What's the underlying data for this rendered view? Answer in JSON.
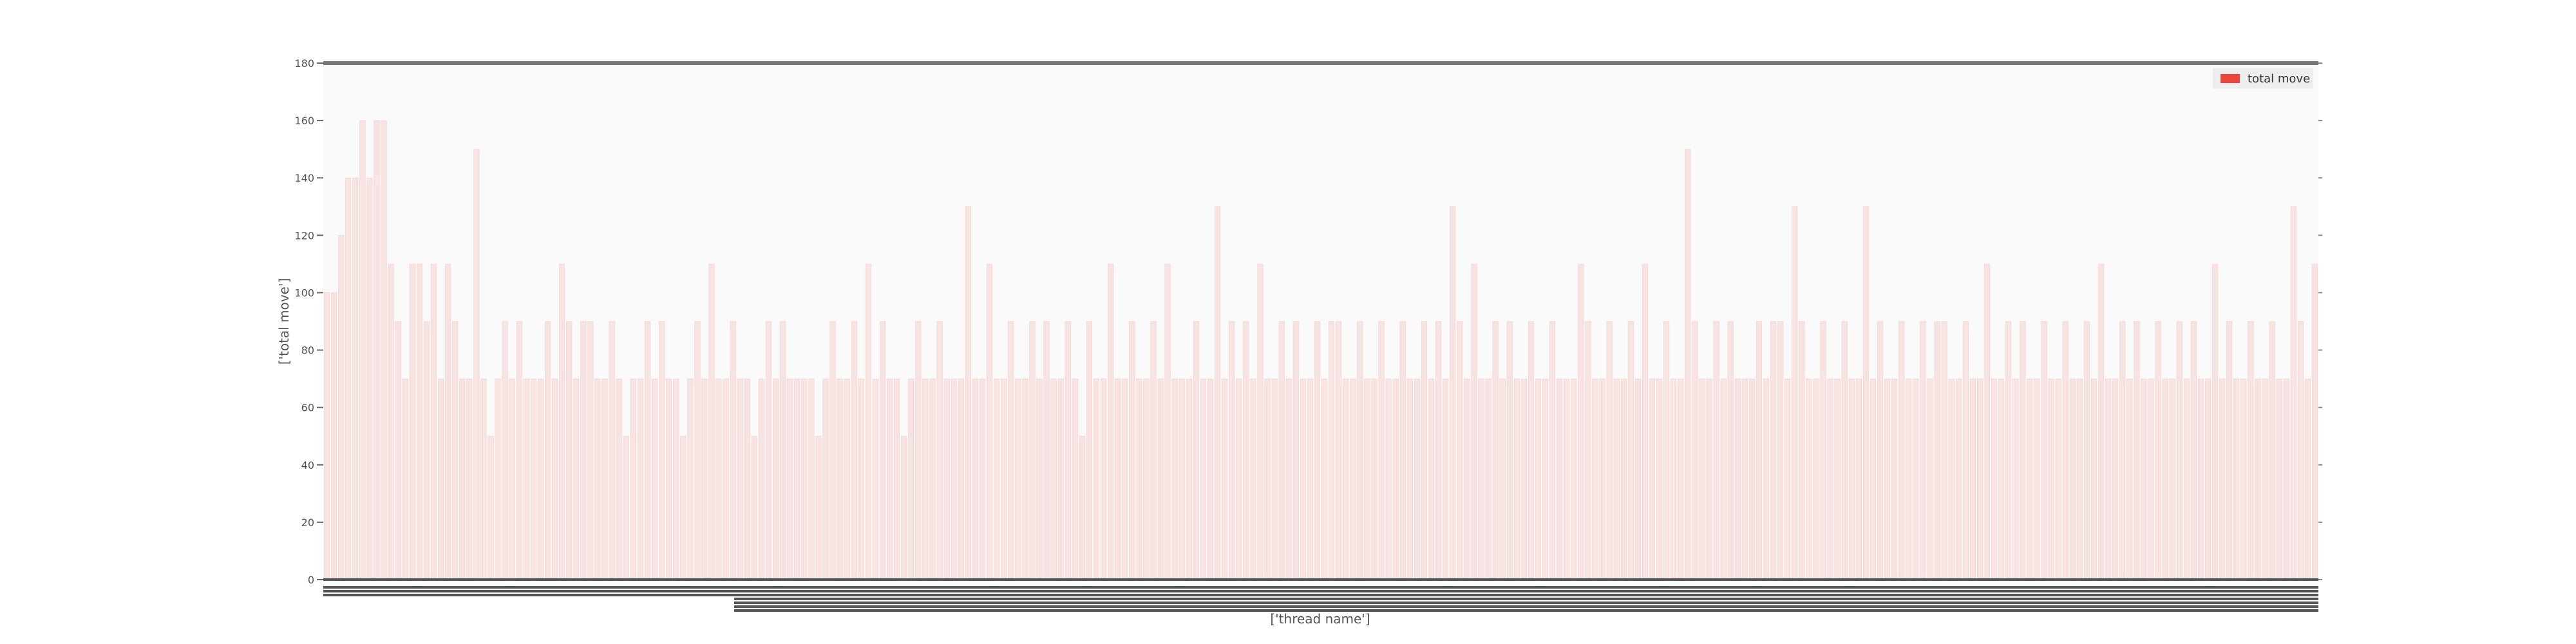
{
  "chart_data": {
    "type": "bar",
    "title": "",
    "xlabel": "['thread name']",
    "ylabel": "['total move']",
    "ylim": [
      0,
      180
    ],
    "yticks": [
      0,
      20,
      40,
      60,
      80,
      100,
      120,
      140,
      160,
      180
    ],
    "legend": {
      "placement": "top-right"
    },
    "grid": false,
    "series": [
      {
        "name": "total move",
        "color": "#e8473a",
        "values": [
          100,
          100,
          120,
          140,
          140,
          160,
          140,
          160,
          160,
          110,
          90,
          70,
          110,
          110,
          90,
          110,
          70,
          110,
          90,
          70,
          70,
          150,
          70,
          50,
          70,
          90,
          70,
          90,
          70,
          70,
          70,
          90,
          70,
          110,
          90,
          70,
          90,
          90,
          70,
          70,
          90,
          70,
          50,
          70,
          70,
          90,
          70,
          90,
          70,
          70,
          50,
          70,
          90,
          70,
          110,
          70,
          70,
          90,
          70,
          70,
          50,
          70,
          90,
          70,
          90,
          70,
          70,
          70,
          70,
          50,
          70,
          90,
          70,
          70,
          90,
          70,
          110,
          70,
          90,
          70,
          70,
          50,
          70,
          90,
          70,
          70,
          90,
          70,
          70,
          70,
          130,
          70,
          70,
          110,
          70,
          70,
          90,
          70,
          70,
          90,
          70,
          90,
          70,
          70,
          90,
          70,
          50,
          90,
          70,
          70,
          110,
          70,
          70,
          90,
          70,
          70,
          90,
          70,
          110,
          70,
          70,
          70,
          90,
          70,
          70,
          130,
          70,
          90,
          70,
          90,
          70,
          110,
          70,
          70,
          90,
          70,
          90,
          70,
          70,
          90,
          70,
          90,
          90,
          70,
          70,
          90,
          70,
          70,
          90,
          70,
          70,
          90,
          70,
          70,
          90,
          70,
          90,
          70,
          130,
          90,
          70,
          110,
          70,
          70,
          90,
          70,
          90,
          70,
          70,
          90,
          70,
          70,
          90,
          70,
          70,
          70,
          110,
          90,
          70,
          70,
          90,
          70,
          70,
          90,
          70,
          110,
          70,
          70,
          90,
          70,
          70,
          150,
          90,
          70,
          70,
          90,
          70,
          90,
          70,
          70,
          70,
          90,
          70,
          90,
          90,
          70,
          130,
          90,
          70,
          70,
          90,
          70,
          70,
          90,
          70,
          70,
          130,
          70,
          90,
          70,
          70,
          90,
          70,
          70,
          90,
          70,
          90,
          90,
          70,
          70,
          90,
          70,
          70,
          110,
          70,
          70,
          90,
          70,
          90,
          70,
          70,
          90,
          70,
          70,
          90,
          70,
          70,
          90,
          70,
          110,
          70,
          70,
          90,
          70,
          90,
          70,
          70,
          90,
          70,
          70,
          90,
          70,
          90,
          70,
          70,
          110,
          70,
          90,
          70,
          70,
          90,
          70,
          70,
          90,
          70,
          70,
          130,
          90,
          70,
          110
        ]
      }
    ]
  }
}
